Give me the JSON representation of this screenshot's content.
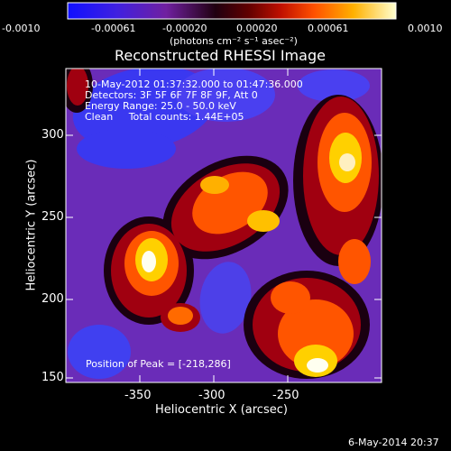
{
  "colorbar": {
    "tick_labels": [
      "-0.0010",
      "-0.00061",
      "-0.00020",
      "0.00020",
      "0.00061",
      "0.0010"
    ],
    "units_label": "(photons cm⁻² s⁻¹ asec⁻²)"
  },
  "plot": {
    "title": "Reconstructed RHESSI Image",
    "info_lines": [
      "10-May-2012 01:37:32.000 to 01:47:36.000",
      "Detectors: 3F 5F 6F 7F 8F 9F, Att 0",
      "Energy Range: 25.0 - 50.0 keV",
      "Clean     Total counts: 1.44E+05"
    ],
    "peak_text": "Position of Peak = [-218,286]",
    "x_axis_label": "Heliocentric X (arcsec)",
    "y_axis_label": "Heliocentric Y (arcsec)",
    "x_tick_labels": [
      "-350",
      "-300",
      "-250"
    ],
    "y_tick_labels": [
      "300",
      "250",
      "200",
      "150"
    ]
  },
  "footer": {
    "date_stamp": "6-May-2014 20:37"
  },
  "colors": {
    "background": "#000000",
    "text": "#ffffff",
    "colormap": [
      "#1010ff",
      "#7020c0",
      "#301040",
      "#000000",
      "#b00000",
      "#ff6000",
      "#ffe000",
      "#ffffe0"
    ]
  }
}
